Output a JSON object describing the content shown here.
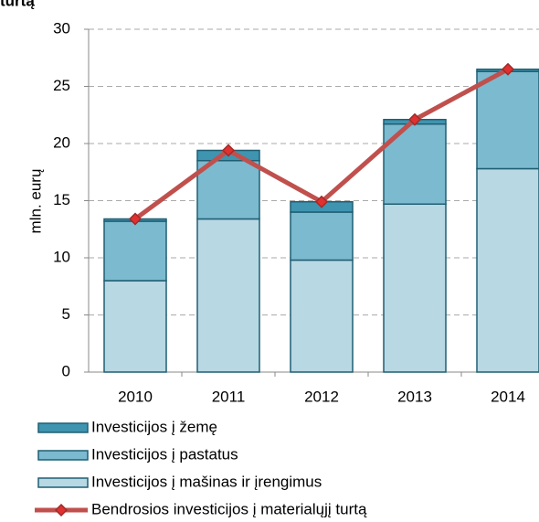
{
  "chart_data": {
    "type": "bar",
    "stacked": true,
    "title": "turtą",
    "ylabel": "mln. eurų",
    "categories": [
      "2010",
      "2011",
      "2012",
      "2013",
      "2014"
    ],
    "series": [
      {
        "name": "Investicijos į žemę",
        "color": "#3f94b0",
        "values": [
          0.2,
          0.9,
          0.9,
          0.4,
          0.2
        ]
      },
      {
        "name": "Investicijos į pastatus",
        "color": "#7cbad0",
        "values": [
          5.2,
          5.1,
          4.2,
          7.0,
          8.5
        ]
      },
      {
        "name": "Investicijos į mašinas ir įrengimus",
        "color": "#b8d8e4",
        "values": [
          8.0,
          13.4,
          9.8,
          14.7,
          17.8
        ]
      },
      {
        "name": "Bendrosios investicijos į materialųjį turtą",
        "color": "#c0504d",
        "type": "line",
        "values": [
          13.4,
          19.4,
          14.9,
          22.1,
          26.5
        ]
      }
    ],
    "ylim": [
      0,
      30
    ],
    "yticks": [
      0,
      5,
      10,
      15,
      20,
      25,
      30
    ],
    "grid": true
  }
}
